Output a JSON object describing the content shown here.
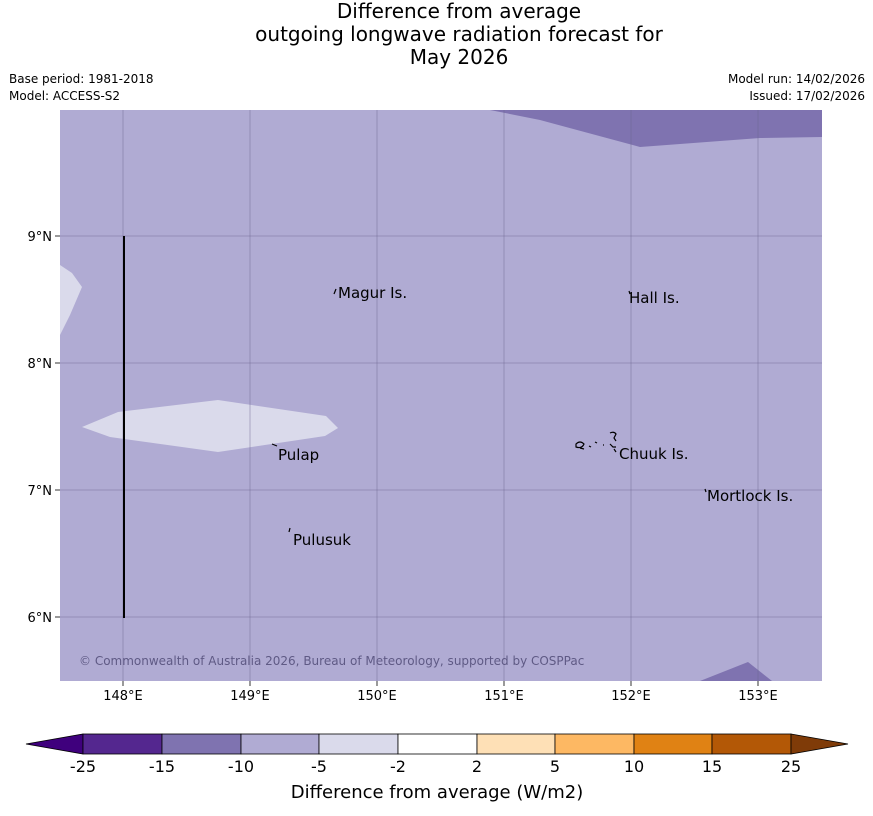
{
  "header": {
    "title_line1": "Difference from average",
    "title_line2": "outgoing longwave radiation forecast for",
    "title_line3": "May 2026",
    "base_period": "Base period: 1981-2018",
    "model": "Model: ACCESS-S2",
    "model_run": "Model run: 14/02/2026",
    "issued": "Issued: 17/02/2026"
  },
  "map": {
    "copyright": "© Commonwealth of Australia 2026, Bureau of Meteorology, supported by COSPPac",
    "lat_ticks": [
      "9°N",
      "8°N",
      "7°N",
      "6°N"
    ],
    "lon_ticks": [
      "148°E",
      "149°E",
      "150°E",
      "151°E",
      "152°E",
      "153°E"
    ],
    "places": {
      "magur": "Magur Is.",
      "hall": "Hall Is.",
      "pulap": "Pulap",
      "chuuk": "Chuuk Is.",
      "mortlock": "Mortlock Is.",
      "pulusuk": "Pulusuk"
    },
    "colors": {
      "background_band": "#b0abd3",
      "lower_band": "#dadaeb",
      "upper_band": "#7f73b0"
    }
  },
  "colorbar": {
    "label": "Difference from average (W/m2)",
    "ticks": [
      "-25",
      "-15",
      "-10",
      "-5",
      "-2",
      "2",
      "5",
      "10",
      "15",
      "25"
    ],
    "colors": [
      "#3f007d",
      "#54278f",
      "#7f73b0",
      "#b0abd3",
      "#dadaeb",
      "#ffffff",
      "#fee0b6",
      "#fdb863",
      "#e08214",
      "#b35806",
      "#7f3b08"
    ]
  }
}
